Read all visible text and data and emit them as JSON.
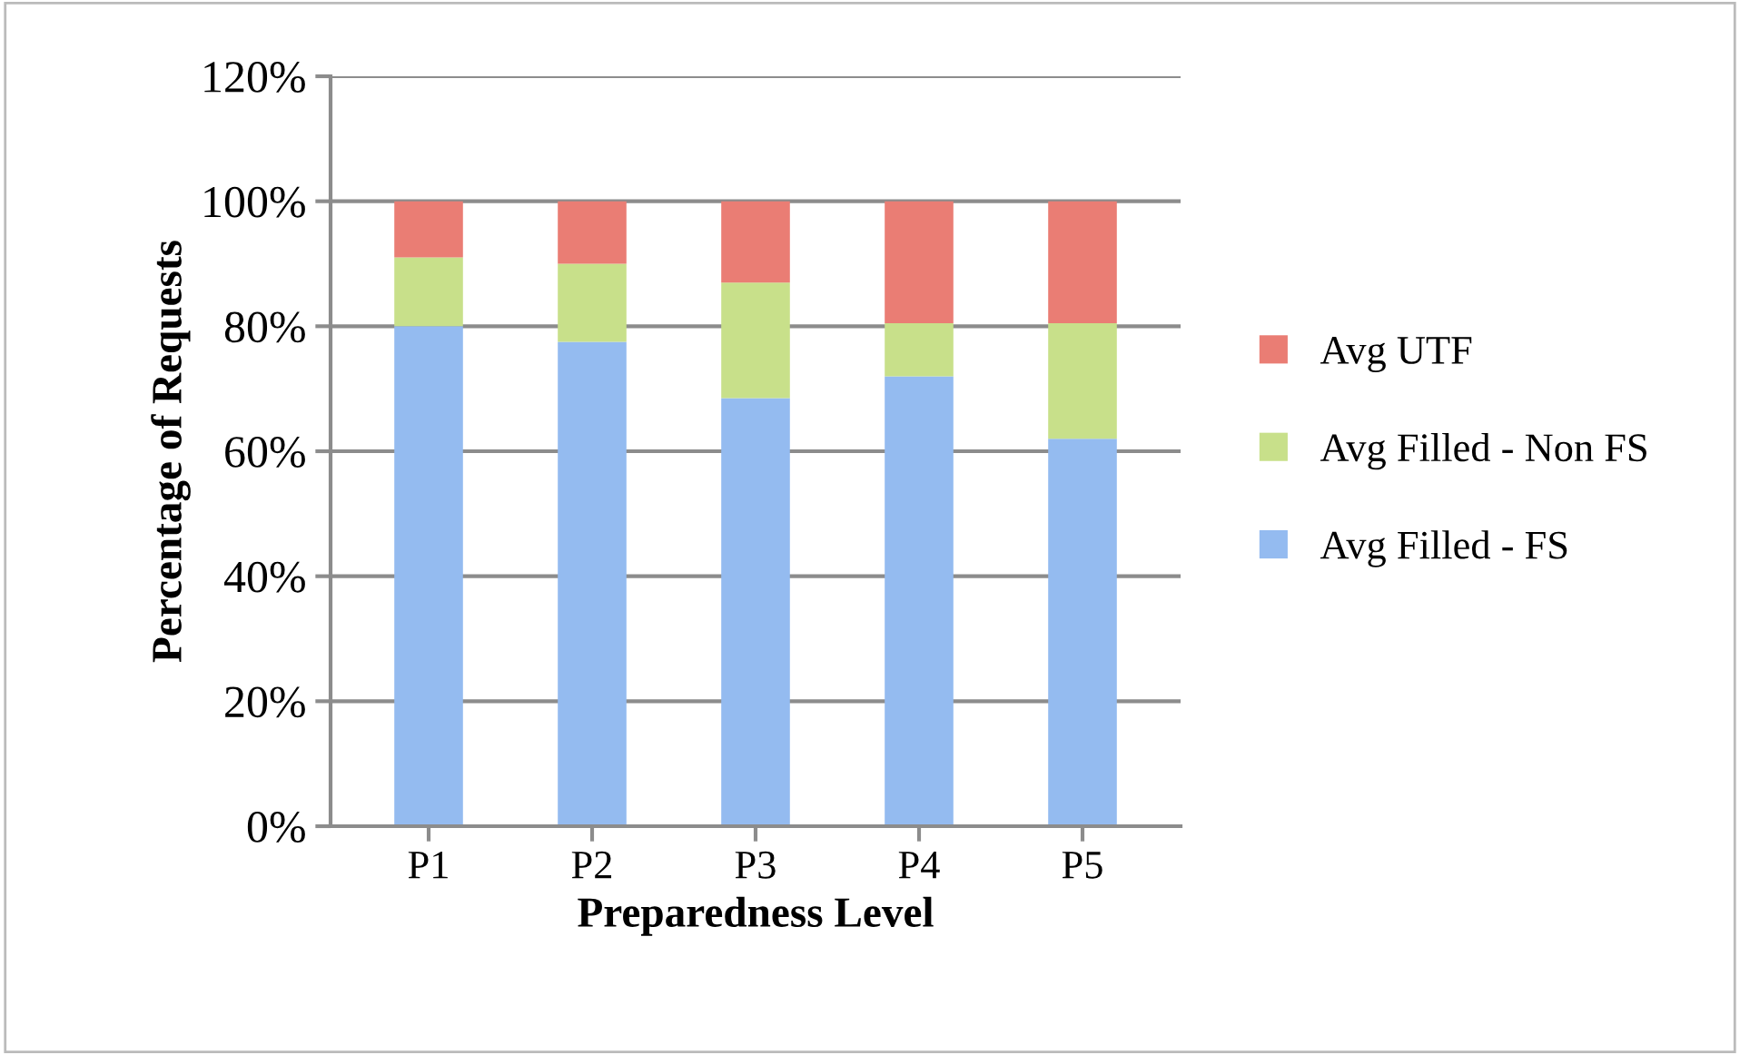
{
  "chart_data": {
    "type": "bar",
    "stacked": true,
    "xlabel": "Preparedness Level",
    "ylabel": "Percentage of Requests",
    "categories": [
      "P1",
      "P2",
      "P3",
      "P4",
      "P5"
    ],
    "series": [
      {
        "name": "Avg Filled - FS",
        "color": "#94bbf0",
        "values": [
          80,
          77.5,
          68.5,
          72,
          62
        ]
      },
      {
        "name": "Avg Filled - Non FS",
        "color": "#c8e08a",
        "values": [
          11,
          12.5,
          18.5,
          8.5,
          18.5
        ]
      },
      {
        "name": "Avg UTF",
        "color": "#ea7d74",
        "values": [
          9,
          10,
          13,
          19.5,
          19.5
        ]
      }
    ],
    "ylim": [
      0,
      120
    ],
    "yticks": [
      {
        "value": 0,
        "label": "0%"
      },
      {
        "value": 20,
        "label": "20%"
      },
      {
        "value": 40,
        "label": "40%"
      },
      {
        "value": 60,
        "label": "60%"
      },
      {
        "value": 80,
        "label": "80%"
      },
      {
        "value": 100,
        "label": "100%"
      },
      {
        "value": 120,
        "label": "120%"
      }
    ],
    "grid": "y",
    "legend": "right"
  }
}
